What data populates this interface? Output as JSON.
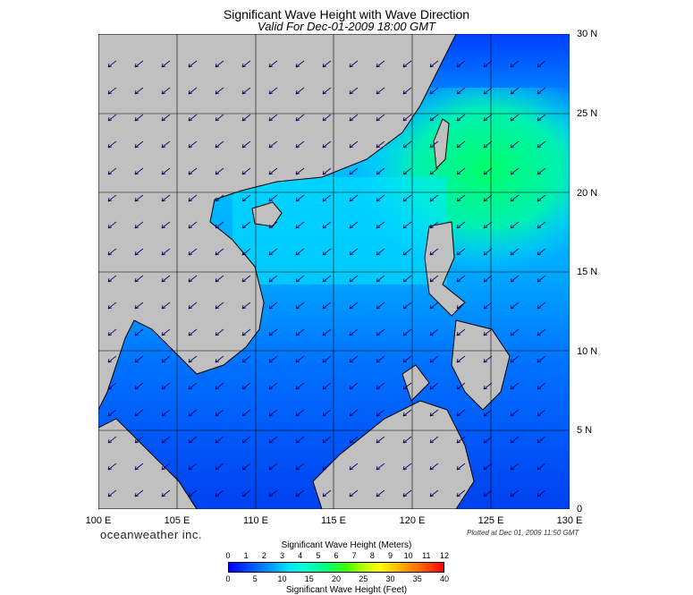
{
  "header": {
    "title": "Significant Wave Height with Wave Direction",
    "subtitle": "Valid For Dec-01-2009 18:00 GMT"
  },
  "map": {
    "lat_labels": [
      "30 N",
      "25 N",
      "20 N",
      "15 N",
      "10 N",
      "5 N",
      "0"
    ],
    "lon_labels": [
      "100 E",
      "105 E",
      "110 E",
      "115 E",
      "120 E",
      "125 E",
      "130 E"
    ],
    "colors": {
      "land": "#c0c0c0",
      "grid": "#000000",
      "deep_blue": "#0010e0",
      "cyan": "#00f0ff",
      "green": "#00ff70"
    }
  },
  "footer": {
    "brand": "oceanweather inc.",
    "plotted": "Plotted at Dec 01, 2009 11:50 GMT"
  },
  "scale": {
    "meters_title": "Significant Wave Height (Meters)",
    "meters_ticks": [
      "0",
      "1",
      "2",
      "3",
      "4",
      "5",
      "6",
      "7",
      "8",
      "9",
      "10",
      "11",
      "12"
    ],
    "feet_ticks": [
      "0",
      "5",
      "10",
      "15",
      "20",
      "25",
      "30",
      "35",
      "40"
    ],
    "feet_title": "Significant Wave Height (Feet)"
  }
}
